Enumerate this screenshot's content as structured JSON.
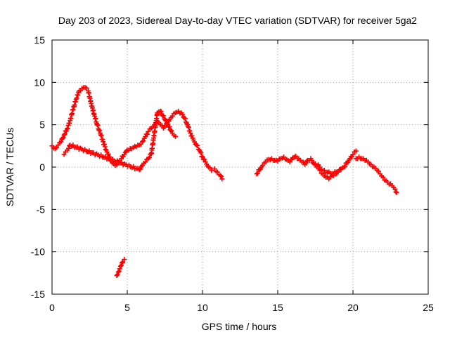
{
  "chart_data": {
    "type": "scatter",
    "title": "Day 203 of 2023, Sidereal Day-to-day VTEC variation (SDTVAR) for receiver 5ga2",
    "xlabel": "GPS time / hours",
    "ylabel": "SDTVAR / TECUs",
    "xlim": [
      0,
      25
    ],
    "ylim": [
      -15,
      15
    ],
    "xticks": [
      0,
      5,
      10,
      15,
      20,
      25
    ],
    "yticks": [
      -15,
      -10,
      -5,
      0,
      5,
      10,
      15
    ],
    "grid": true,
    "marker": "plus",
    "color": "#ff0000",
    "series": [
      {
        "name": "SDTVAR",
        "segments": [
          {
            "x": [
              0.0,
              0.2,
              0.4,
              0.6,
              0.8,
              1.0,
              1.2,
              1.4,
              1.6,
              1.8,
              2.0,
              2.2,
              2.4,
              2.6,
              2.8,
              3.0,
              3.2,
              3.4,
              3.6,
              3.8,
              4.0,
              4.2,
              4.4,
              4.6,
              4.8,
              5.0,
              5.2,
              5.4,
              5.6,
              5.8,
              6.0,
              6.2,
              6.4,
              6.6,
              6.8,
              7.0,
              7.2,
              7.4,
              7.6,
              7.8,
              8.0,
              8.2,
              8.4,
              8.6,
              8.8,
              9.0,
              9.2,
              9.4,
              9.6,
              9.8,
              10.0,
              10.2,
              10.4,
              10.6
            ],
            "y": [
              2.5,
              2.2,
              2.6,
              3.0,
              3.8,
              4.5,
              5.5,
              6.8,
              8.0,
              9.0,
              9.3,
              9.4,
              9.0,
              7.5,
              6.2,
              5.0,
              4.0,
              3.0,
              2.0,
              1.2,
              0.5,
              0.2,
              0.6,
              1.0,
              1.5,
              2.0,
              2.2,
              2.3,
              2.4,
              2.6,
              3.0,
              3.6,
              4.2,
              4.6,
              5.0,
              5.4,
              5.0,
              4.6,
              5.0,
              5.6,
              6.0,
              6.4,
              6.6,
              6.4,
              5.8,
              5.0,
              4.0,
              3.2,
              2.6,
              2.0,
              1.2,
              0.6,
              0.0,
              -0.4
            ]
          },
          {
            "x": [
              4.3,
              4.4,
              4.5,
              4.6,
              4.7,
              4.8
            ],
            "y": [
              -12.8,
              -12.4,
              -12.0,
              -11.6,
              -11.2,
              -10.9
            ]
          },
          {
            "x": [
              0.8,
              0.9,
              1.0,
              1.1,
              1.2,
              5.8,
              6.0,
              6.2,
              6.4,
              6.6,
              7.0,
              7.2,
              8.0,
              8.2
            ],
            "y": [
              1.5,
              1.8,
              2.0,
              2.2,
              2.6,
              -0.3,
              0.2,
              0.6,
              1.0,
              1.6,
              6.4,
              6.6,
              4.0,
              3.6
            ]
          },
          {
            "x": [
              10.8,
              11.0,
              11.2,
              11.3
            ],
            "y": [
              -0.2,
              -0.6,
              -1.0,
              -1.4
            ]
          },
          {
            "x": [
              13.6,
              13.8,
              14.0,
              14.2,
              14.4,
              14.6,
              14.8,
              15.0,
              15.2,
              15.4,
              15.6,
              15.8,
              16.0,
              16.2,
              16.4,
              16.6,
              16.8,
              17.0,
              17.2,
              17.4,
              17.6,
              17.8,
              18.0,
              18.2,
              18.4,
              18.6,
              18.8,
              19.0,
              19.2,
              19.4,
              19.6,
              19.8,
              20.0,
              20.2
            ],
            "y": [
              -0.8,
              -0.3,
              0.2,
              0.6,
              0.9,
              1.0,
              0.8,
              0.7,
              1.0,
              1.2,
              0.9,
              0.6,
              1.1,
              1.3,
              1.0,
              0.6,
              0.3,
              0.8,
              1.0,
              0.4,
              0.0,
              -0.4,
              -0.8,
              -1.2,
              -1.4,
              -1.0,
              -0.8,
              -0.6,
              -0.3,
              0.0,
              0.5,
              1.0,
              1.5,
              1.9
            ]
          },
          {
            "x": [
              17.5,
              17.8,
              18.0,
              18.3,
              18.6,
              18.9,
              19.2
            ],
            "y": [
              0.4,
              0.0,
              -0.4,
              -0.6,
              -0.8,
              -0.6,
              -0.2
            ]
          },
          {
            "x": [
              20.2,
              20.4,
              20.6,
              20.8,
              21.0,
              21.2,
              21.4,
              21.6,
              21.8,
              22.0,
              22.2,
              22.4,
              22.6,
              22.8,
              22.9
            ],
            "y": [
              1.0,
              1.2,
              1.0,
              0.8,
              0.6,
              0.3,
              0.0,
              -0.4,
              -0.8,
              -1.2,
              -1.6,
              -2.0,
              -2.2,
              -2.6,
              -3.0
            ]
          }
        ]
      }
    ]
  }
}
